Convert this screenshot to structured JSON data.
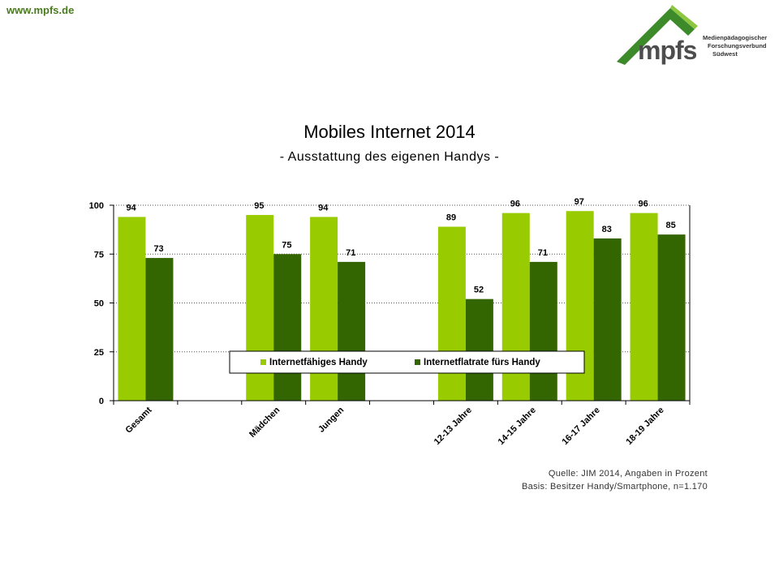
{
  "header": {
    "site_url": "www.mpfs.de",
    "logo": {
      "word": "mpfs",
      "line1": "Medienpädagogischer",
      "line2": "Forschungsverbund",
      "line3": "Südwest",
      "color_roof": "#3d8a2a",
      "color_roof_light": "#8dc63f"
    }
  },
  "chart_data": {
    "type": "bar",
    "title": "Mobiles Internet 2014",
    "subtitle": "- Ausstattung des eigenen Handys -",
    "categories": [
      "Gesamt",
      "",
      "Mädchen",
      "Jungen",
      "",
      "12-13 Jahre",
      "14-15 Jahre",
      "16-17 Jahre",
      "18-19 Jahre"
    ],
    "series": [
      {
        "name": "Internetfähiges Handy",
        "color": "#99cc00",
        "values": [
          94,
          null,
          95,
          94,
          null,
          89,
          96,
          97,
          96
        ]
      },
      {
        "name": "Internetflatrate fürs Handy",
        "color": "#336600",
        "values": [
          73,
          null,
          75,
          71,
          null,
          52,
          71,
          83,
          85
        ]
      }
    ],
    "yticks": [
      0,
      25,
      50,
      75,
      100
    ],
    "ylim": [
      0,
      100
    ],
    "grid": "dotted horizontal",
    "legend_position": "inside-bottom-center"
  },
  "footer": {
    "source": "Quelle: JIM 2014, Angaben in Prozent",
    "basis": "Basis: Besitzer Handy/Smartphone, n=1.170"
  }
}
